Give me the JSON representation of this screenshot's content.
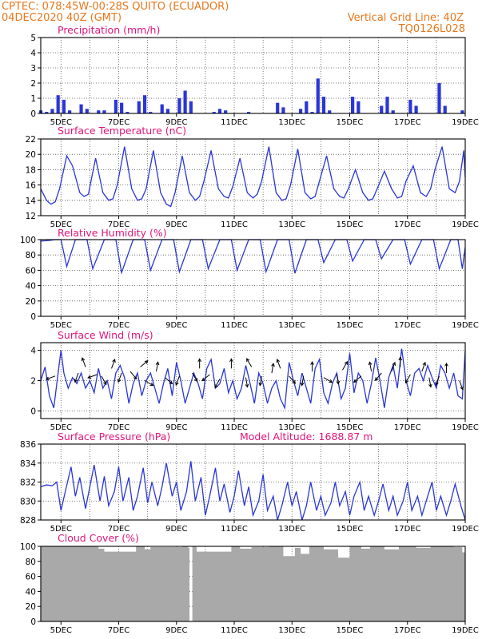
{
  "header": {
    "line1": "CPTEC:   078:45W-00:28S   QUITO (ECUADOR)",
    "line2": "04DEC2020 40Z (GMT)",
    "grid_note": "Vertical Grid Line: 40Z",
    "code": "TQ0126L028"
  },
  "model_altitude": "Model Altitude: 1688.87 m",
  "colors": {
    "header": "#e8771c",
    "title": "#e0157a",
    "series": "#2a36d6",
    "bars": "#2a36d6",
    "cloud": "#a9a9a9",
    "grid": "#555555"
  },
  "x_axis": {
    "start": "04DEC2020 40Z",
    "end": "19DEC2020",
    "tick_labels": [
      "5DEC",
      "7DEC",
      "9DEC",
      "11DEC",
      "13DEC",
      "15DEC",
      "17DEC",
      "19DEC"
    ],
    "tick_days": [
      5,
      7,
      9,
      11,
      13,
      15,
      17,
      19
    ],
    "grid_days": [
      5,
      6,
      7,
      8,
      9,
      10,
      11,
      12,
      13,
      14,
      15,
      16,
      17,
      18,
      19
    ]
  },
  "chart_data": [
    {
      "type": "bar",
      "title": "Precipitation (mm/h)",
      "ylim": [
        0,
        5
      ],
      "yticks": [
        0,
        1,
        2,
        3,
        4,
        5
      ],
      "x": [
        4.3,
        4.5,
        4.7,
        4.9,
        5.1,
        5.3,
        5.5,
        5.7,
        5.9,
        6.1,
        6.3,
        6.5,
        6.7,
        6.9,
        7.1,
        7.3,
        7.5,
        7.7,
        7.9,
        8.1,
        8.3,
        8.5,
        8.7,
        8.9,
        9.1,
        9.3,
        9.5,
        9.7,
        9.9,
        10.1,
        10.3,
        10.5,
        10.7,
        10.9,
        11.1,
        11.3,
        11.5,
        11.7,
        11.9,
        12.1,
        12.3,
        12.5,
        12.7,
        12.9,
        13.1,
        13.3,
        13.5,
        13.7,
        13.9,
        14.1,
        14.3,
        14.5,
        14.7,
        14.9,
        15.1,
        15.3,
        15.5,
        15.7,
        15.9,
        16.1,
        16.3,
        16.5,
        16.7,
        16.9,
        17.1,
        17.3,
        17.5,
        17.7,
        17.9,
        18.1,
        18.3,
        18.5,
        18.7,
        18.9
      ],
      "values": [
        0.2,
        0.1,
        0.3,
        1.2,
        0.9,
        0.2,
        0.0,
        0.6,
        0.3,
        0.0,
        0.2,
        0.2,
        0.0,
        0.9,
        0.7,
        0.1,
        0.0,
        0.8,
        1.2,
        0.1,
        0.0,
        0.6,
        0.3,
        0.0,
        1.0,
        1.5,
        0.8,
        0.0,
        0.0,
        0.0,
        0.1,
        0.3,
        0.2,
        0.0,
        0.0,
        0.0,
        0.1,
        0.0,
        0.0,
        0.0,
        0.0,
        0.7,
        0.4,
        0.0,
        0.0,
        0.3,
        0.8,
        0.1,
        2.3,
        1.1,
        0.2,
        0.0,
        0.0,
        0.0,
        1.1,
        0.8,
        0.0,
        0.0,
        0.0,
        0.5,
        1.1,
        0.2,
        0.0,
        0.0,
        0.9,
        0.5,
        0.0,
        0.0,
        0.0,
        2.0,
        0.5,
        0.0,
        0.0,
        0.2
      ]
    },
    {
      "type": "line",
      "title": "Surface Temperature (nC)",
      "ylim": [
        12,
        22
      ],
      "yticks": [
        12,
        14,
        16,
        18,
        20,
        22
      ],
      "x": [
        4.3,
        4.5,
        4.65,
        4.8,
        4.95,
        5.2,
        5.4,
        5.65,
        5.8,
        5.95,
        6.2,
        6.45,
        6.65,
        6.8,
        6.95,
        7.2,
        7.45,
        7.65,
        7.8,
        7.95,
        8.2,
        8.45,
        8.65,
        8.8,
        8.95,
        9.2,
        9.45,
        9.65,
        9.8,
        9.95,
        10.2,
        10.45,
        10.65,
        10.8,
        10.95,
        11.2,
        11.45,
        11.65,
        11.8,
        11.95,
        12.2,
        12.45,
        12.65,
        12.8,
        12.95,
        13.2,
        13.45,
        13.65,
        13.8,
        13.95,
        14.2,
        14.45,
        14.65,
        14.8,
        14.95,
        15.2,
        15.45,
        15.65,
        15.8,
        15.95,
        16.2,
        16.45,
        16.65,
        16.8,
        16.95,
        17.2,
        17.45,
        17.65,
        17.8,
        17.95,
        18.2,
        18.45,
        18.65,
        18.8,
        18.95,
        19.0
      ],
      "values": [
        15.5,
        14.0,
        13.5,
        13.8,
        15.5,
        19.8,
        18.5,
        15.0,
        14.5,
        14.8,
        19.5,
        15.0,
        14.0,
        14.2,
        16.0,
        21.0,
        15.5,
        14.0,
        14.2,
        15.5,
        20.5,
        15.0,
        13.5,
        13.2,
        15.0,
        19.8,
        15.0,
        14.0,
        14.5,
        16.5,
        20.5,
        15.5,
        14.5,
        14.3,
        15.8,
        19.5,
        15.0,
        14.3,
        14.8,
        16.5,
        21.0,
        15.0,
        14.0,
        14.2,
        16.0,
        20.7,
        15.0,
        14.2,
        14.5,
        16.5,
        19.8,
        15.5,
        14.5,
        14.3,
        15.5,
        18.0,
        15.0,
        14.0,
        14.2,
        15.5,
        17.8,
        15.5,
        14.3,
        14.5,
        16.5,
        18.5,
        15.0,
        14.5,
        15.5,
        18.0,
        21.0,
        15.5,
        15.0,
        16.5,
        20.5,
        17.0
      ]
    },
    {
      "type": "line",
      "title": "Relative Humidity (%)",
      "ylim": [
        0,
        100
      ],
      "yticks": [
        0,
        20,
        40,
        60,
        80,
        100
      ],
      "x": [
        4.3,
        4.6,
        4.8,
        5.0,
        5.2,
        5.5,
        5.75,
        5.9,
        6.1,
        6.5,
        6.75,
        6.9,
        7.1,
        7.5,
        7.75,
        7.9,
        8.1,
        8.5,
        8.75,
        8.9,
        9.1,
        9.5,
        9.75,
        9.9,
        10.1,
        10.5,
        10.75,
        10.9,
        11.1,
        11.5,
        11.75,
        11.9,
        12.1,
        12.5,
        12.75,
        12.9,
        13.1,
        13.5,
        13.75,
        13.9,
        14.1,
        14.5,
        14.75,
        14.9,
        15.1,
        15.5,
        15.75,
        15.9,
        16.1,
        16.5,
        16.75,
        16.9,
        17.1,
        17.5,
        17.75,
        17.9,
        18.1,
        18.5,
        18.75,
        18.9,
        19.0
      ],
      "values": [
        98,
        99,
        100,
        100,
        65,
        100,
        100,
        100,
        62,
        100,
        100,
        100,
        57,
        100,
        100,
        100,
        60,
        100,
        100,
        100,
        58,
        100,
        100,
        100,
        62,
        100,
        100,
        100,
        60,
        100,
        100,
        100,
        58,
        100,
        100,
        100,
        56,
        100,
        100,
        100,
        70,
        100,
        100,
        100,
        72,
        100,
        100,
        100,
        75,
        100,
        100,
        100,
        68,
        100,
        100,
        100,
        62,
        100,
        100,
        62,
        90
      ]
    },
    {
      "type": "line",
      "title": "Surface Wind (m/s)",
      "ylim": [
        -0.5,
        4.5
      ],
      "yticks": [
        0,
        2,
        4
      ],
      "x": [
        4.3,
        4.45,
        4.6,
        4.75,
        4.9,
        5.0,
        5.1,
        5.25,
        5.4,
        5.55,
        5.7,
        5.85,
        6.0,
        6.15,
        6.3,
        6.45,
        6.6,
        6.75,
        6.9,
        7.05,
        7.2,
        7.35,
        7.5,
        7.65,
        7.8,
        7.95,
        8.1,
        8.25,
        8.4,
        8.55,
        8.7,
        8.85,
        9.0,
        9.15,
        9.3,
        9.45,
        9.6,
        9.75,
        9.9,
        10.05,
        10.2,
        10.35,
        10.5,
        10.65,
        10.8,
        10.95,
        11.1,
        11.25,
        11.4,
        11.55,
        11.7,
        11.85,
        12.0,
        12.15,
        12.3,
        12.45,
        12.6,
        12.75,
        12.9,
        13.05,
        13.2,
        13.35,
        13.5,
        13.65,
        13.8,
        13.95,
        14.1,
        14.25,
        14.4,
        14.55,
        14.7,
        14.85,
        15.0,
        15.15,
        15.3,
        15.45,
        15.6,
        15.75,
        15.9,
        16.05,
        16.2,
        16.35,
        16.5,
        16.65,
        16.8,
        16.95,
        17.1,
        17.25,
        17.4,
        17.55,
        17.7,
        17.85,
        18.0,
        18.15,
        18.3,
        18.45,
        18.6,
        18.75,
        18.9,
        19.0
      ],
      "values": [
        2.0,
        2.9,
        1.0,
        0.2,
        2.5,
        4.0,
        2.5,
        1.5,
        2.2,
        1.8,
        2.5,
        1.5,
        2.0,
        1.2,
        2.8,
        1.5,
        2.0,
        0.8,
        2.5,
        3.0,
        2.2,
        0.5,
        1.8,
        2.5,
        1.0,
        2.0,
        2.5,
        1.5,
        0.5,
        1.8,
        2.8,
        1.0,
        3.2,
        2.0,
        0.5,
        1.5,
        2.5,
        1.8,
        0.8,
        2.8,
        3.4,
        1.5,
        1.8,
        2.8,
        1.2,
        2.0,
        0.8,
        1.5,
        3.0,
        1.8,
        0.5,
        2.5,
        1.8,
        0.5,
        1.5,
        2.0,
        0.8,
        0.2,
        3.2,
        2.0,
        1.0,
        2.5,
        1.5,
        0.5,
        2.8,
        3.4,
        1.2,
        0.5,
        1.8,
        2.5,
        0.8,
        1.5,
        3.8,
        1.2,
        2.5,
        2.0,
        0.5,
        1.8,
        3.5,
        2.0,
        0.2,
        2.2,
        3.0,
        1.5,
        4.1,
        2.0,
        1.0,
        2.5,
        2.8,
        2.0,
        3.0,
        2.2,
        1.5,
        3.0,
        2.5,
        1.5,
        2.5,
        1.0,
        0.8,
        4.0
      ],
      "arrows": [
        [
          4.8,
          2.3,
          200
        ],
        [
          5.6,
          2.5,
          250
        ],
        [
          5.85,
          2.9,
          110
        ],
        [
          6.25,
          2.4,
          200
        ],
        [
          6.4,
          2.3,
          300
        ],
        [
          6.75,
          2.8,
          70
        ],
        [
          7.1,
          2.5,
          250
        ],
        [
          7.4,
          2.6,
          310
        ],
        [
          7.75,
          2.9,
          40
        ],
        [
          7.9,
          2.0,
          330
        ],
        [
          8.3,
          2.6,
          80
        ],
        [
          8.6,
          2.2,
          320
        ],
        [
          9.1,
          2.3,
          250
        ],
        [
          9.55,
          2.5,
          300
        ],
        [
          9.8,
          2.8,
          90
        ],
        [
          10.15,
          2.4,
          220
        ],
        [
          10.5,
          2.1,
          240
        ],
        [
          10.9,
          2.8,
          90
        ],
        [
          11.4,
          2.2,
          280
        ],
        [
          11.6,
          2.9,
          120
        ],
        [
          11.95,
          2.3,
          260
        ],
        [
          12.3,
          2.5,
          80
        ],
        [
          12.6,
          2.8,
          110
        ],
        [
          12.9,
          2.3,
          310
        ],
        [
          13.4,
          2.3,
          260
        ],
        [
          13.7,
          2.6,
          90
        ],
        [
          14.1,
          2.2,
          330
        ],
        [
          14.55,
          2.4,
          280
        ],
        [
          14.75,
          2.7,
          60
        ],
        [
          15.4,
          2.3,
          220
        ],
        [
          15.75,
          2.6,
          100
        ],
        [
          16.1,
          2.5,
          230
        ],
        [
          16.45,
          2.6,
          70
        ],
        [
          16.75,
          2.9,
          90
        ],
        [
          17.1,
          2.4,
          240
        ],
        [
          17.5,
          2.6,
          70
        ],
        [
          17.75,
          2.2,
          280
        ],
        [
          18.1,
          2.3,
          250
        ],
        [
          18.35,
          2.5,
          90
        ],
        [
          18.8,
          2.0,
          290
        ]
      ]
    },
    {
      "type": "line",
      "title": "Surface Pressure (hPa)",
      "ylim": [
        828,
        836
      ],
      "yticks": [
        828,
        830,
        832,
        834,
        836
      ],
      "x": [
        4.3,
        4.5,
        4.7,
        4.85,
        5.0,
        5.15,
        5.35,
        5.5,
        5.65,
        5.85,
        6.0,
        6.15,
        6.35,
        6.5,
        6.65,
        6.85,
        7.0,
        7.15,
        7.35,
        7.5,
        7.65,
        7.85,
        8.0,
        8.15,
        8.35,
        8.5,
        8.65,
        8.85,
        9.0,
        9.15,
        9.35,
        9.5,
        9.65,
        9.85,
        10.0,
        10.15,
        10.35,
        10.5,
        10.65,
        10.85,
        11.0,
        11.15,
        11.35,
        11.5,
        11.65,
        11.85,
        12.0,
        12.15,
        12.35,
        12.5,
        12.65,
        12.85,
        13.0,
        13.15,
        13.35,
        13.5,
        13.65,
        13.85,
        14.0,
        14.15,
        14.35,
        14.5,
        14.65,
        14.85,
        15.0,
        15.15,
        15.35,
        15.5,
        15.65,
        15.85,
        16.0,
        16.15,
        16.35,
        16.5,
        16.65,
        16.85,
        17.0,
        17.15,
        17.35,
        17.5,
        17.65,
        17.85,
        18.0,
        18.15,
        18.35,
        18.5,
        18.65,
        18.85,
        19.0
      ],
      "values": [
        831.5,
        831.7,
        831.6,
        832.0,
        829.0,
        831.0,
        833.6,
        830.5,
        832.5,
        829.2,
        831.5,
        833.8,
        830.0,
        832.6,
        829.5,
        831.0,
        833.6,
        830.0,
        832.5,
        829.0,
        830.5,
        833.5,
        829.8,
        832.0,
        829.5,
        831.5,
        834.0,
        830.5,
        832.0,
        829.0,
        831.0,
        834.2,
        830.0,
        832.5,
        828.5,
        830.5,
        833.5,
        830.0,
        831.8,
        828.8,
        830.5,
        833.2,
        829.5,
        831.5,
        828.5,
        830.0,
        832.8,
        829.0,
        830.5,
        828.0,
        829.5,
        832.0,
        829.5,
        831.0,
        828.0,
        829.5,
        832.0,
        829.0,
        830.5,
        828.5,
        829.8,
        832.0,
        829.5,
        831.0,
        828.5,
        830.5,
        832.0,
        829.0,
        830.5,
        828.5,
        830.0,
        831.8,
        829.0,
        830.5,
        828.5,
        830.0,
        832.0,
        829.0,
        830.5,
        828.5,
        830.0,
        832.0,
        829.0,
        830.5,
        828.5,
        830.0,
        831.8,
        829.5,
        828.0
      ]
    },
    {
      "type": "area",
      "title": "Cloud Cover (%)",
      "ylim": [
        0,
        100
      ],
      "yticks": [
        0,
        20,
        40,
        60,
        80,
        100
      ],
      "x": [
        4.3,
        5.8,
        6.3,
        6.5,
        7.6,
        7.9,
        8.1,
        9.2,
        9.4,
        9.45,
        9.55,
        9.7,
        10.9,
        11.2,
        11.6,
        12.2,
        12.7,
        13.1,
        13.3,
        13.6,
        14.1,
        14.6,
        15.0,
        15.4,
        15.7,
        16.2,
        16.7,
        17.3,
        17.8,
        18.6,
        18.9,
        19.0
      ],
      "values": [
        100,
        100,
        97,
        93,
        100,
        96,
        99,
        100,
        98,
        0,
        100,
        93,
        100,
        97,
        99,
        100,
        87,
        98,
        90,
        100,
        96,
        85,
        100,
        97,
        100,
        96,
        100,
        98,
        100,
        99,
        92,
        100
      ]
    }
  ]
}
